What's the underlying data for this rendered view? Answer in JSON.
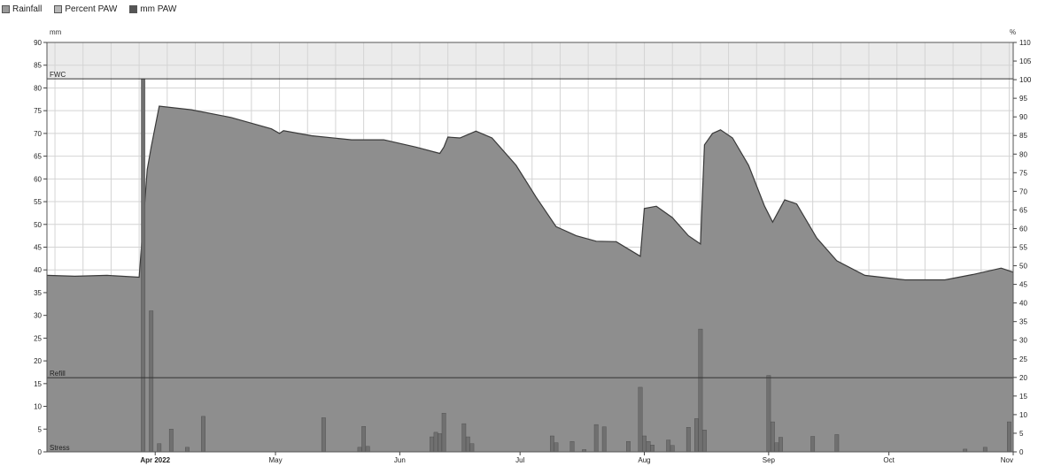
{
  "legend": [
    {
      "label": "Rainfall",
      "color": "#9a9a9a"
    },
    {
      "label": "Percent PAW",
      "color": "#b8b8b8"
    },
    {
      "label": "mm PAW",
      "color": "#555555"
    }
  ],
  "colors": {
    "plot_bg": "#ffffff",
    "band_bg": "#ebebeb",
    "area_fill": "#8e8e8e",
    "area_line": "#3a3a3a",
    "rain_fill": "#707070",
    "grid": "#d4d4d4",
    "line": "#333333"
  },
  "chart_data": {
    "type": "area",
    "left_axis_unit": "mm",
    "right_axis_unit": "%",
    "ylim_left": [
      0,
      90
    ],
    "ylim_right": [
      0,
      110
    ],
    "yticks_left": [
      0,
      5,
      10,
      15,
      20,
      25,
      30,
      35,
      40,
      45,
      50,
      55,
      60,
      65,
      70,
      75,
      80,
      85,
      90
    ],
    "yticks_right": [
      0,
      5,
      10,
      15,
      20,
      25,
      30,
      35,
      40,
      45,
      50,
      55,
      60,
      65,
      70,
      75,
      80,
      85,
      90,
      95,
      100,
      105,
      110
    ],
    "xlim": [
      "2022-03-05",
      "2022-11-01"
    ],
    "x_ticks": [
      {
        "date": "2022-04-01",
        "label": "Apr 2022"
      },
      {
        "date": "2022-05-01",
        "label": "May"
      },
      {
        "date": "2022-06-01",
        "label": "Jun"
      },
      {
        "date": "2022-07-01",
        "label": "Jul"
      },
      {
        "date": "2022-08-01",
        "label": "Aug"
      },
      {
        "date": "2022-09-01",
        "label": "Sep"
      },
      {
        "date": "2022-10-01",
        "label": "Oct"
      },
      {
        "date": "2022-11-01",
        "label": "Nov"
      }
    ],
    "grid": true,
    "reference_lines": [
      {
        "label": "FWC",
        "value": 82
      },
      {
        "label": "Refill",
        "value": 16.3
      },
      {
        "label": "Stress",
        "value": 0
      }
    ],
    "series": [
      {
        "name": "mm PAW",
        "points": [
          [
            "2022-03-05",
            38.8
          ],
          [
            "2022-03-12",
            38.6
          ],
          [
            "2022-03-20",
            38.8
          ],
          [
            "2022-03-28",
            38.4
          ],
          [
            "2022-03-29",
            50.0
          ],
          [
            "2022-03-30",
            62.0
          ],
          [
            "2022-03-31",
            67.0
          ],
          [
            "2022-04-02",
            76.0
          ],
          [
            "2022-04-10",
            75.2
          ],
          [
            "2022-04-20",
            73.5
          ],
          [
            "2022-04-30",
            71.0
          ],
          [
            "2022-05-02",
            70.0
          ],
          [
            "2022-05-03",
            70.6
          ],
          [
            "2022-05-10",
            69.5
          ],
          [
            "2022-05-20",
            68.6
          ],
          [
            "2022-05-28",
            68.6
          ],
          [
            "2022-06-05",
            67.0
          ],
          [
            "2022-06-11",
            65.6
          ],
          [
            "2022-06-12",
            67.0
          ],
          [
            "2022-06-13",
            69.2
          ],
          [
            "2022-06-16",
            69.0
          ],
          [
            "2022-06-20",
            70.5
          ],
          [
            "2022-06-24",
            69.0
          ],
          [
            "2022-06-30",
            63.0
          ],
          [
            "2022-07-05",
            56.0
          ],
          [
            "2022-07-10",
            49.5
          ],
          [
            "2022-07-15",
            47.5
          ],
          [
            "2022-07-20",
            46.3
          ],
          [
            "2022-07-25",
            46.2
          ],
          [
            "2022-07-31",
            43.0
          ],
          [
            "2022-08-01",
            53.5
          ],
          [
            "2022-08-04",
            54.0
          ],
          [
            "2022-08-08",
            51.5
          ],
          [
            "2022-08-12",
            47.5
          ],
          [
            "2022-08-15",
            45.7
          ],
          [
            "2022-08-16",
            67.5
          ],
          [
            "2022-08-18",
            70.0
          ],
          [
            "2022-08-20",
            70.8
          ],
          [
            "2022-08-23",
            69.0
          ],
          [
            "2022-08-27",
            63.0
          ],
          [
            "2022-08-31",
            54.0
          ],
          [
            "2022-09-02",
            50.5
          ],
          [
            "2022-09-05",
            55.4
          ],
          [
            "2022-09-08",
            54.5
          ],
          [
            "2022-09-13",
            47.0
          ],
          [
            "2022-09-18",
            42.0
          ],
          [
            "2022-09-25",
            38.8
          ],
          [
            "2022-10-05",
            37.8
          ],
          [
            "2022-10-15",
            37.8
          ],
          [
            "2022-10-22",
            39.0
          ],
          [
            "2022-10-29",
            40.4
          ],
          [
            "2022-11-01",
            39.5
          ]
        ]
      },
      {
        "name": "Rainfall",
        "bars": [
          [
            "2022-03-29",
            82.0
          ],
          [
            "2022-03-31",
            31.0
          ],
          [
            "2022-04-02",
            1.8
          ],
          [
            "2022-04-05",
            5.0
          ],
          [
            "2022-04-09",
            1.0
          ],
          [
            "2022-04-13",
            7.8
          ],
          [
            "2022-05-13",
            7.5
          ],
          [
            "2022-05-22",
            1.0
          ],
          [
            "2022-05-23",
            5.6
          ],
          [
            "2022-05-24",
            1.2
          ],
          [
            "2022-06-09",
            3.3
          ],
          [
            "2022-06-10",
            4.3
          ],
          [
            "2022-06-11",
            4.0
          ],
          [
            "2022-06-12",
            8.5
          ],
          [
            "2022-06-17",
            6.2
          ],
          [
            "2022-06-18",
            3.3
          ],
          [
            "2022-06-19",
            1.8
          ],
          [
            "2022-07-09",
            3.5
          ],
          [
            "2022-07-10",
            2.0
          ],
          [
            "2022-07-14",
            2.3
          ],
          [
            "2022-07-17",
            0.5
          ],
          [
            "2022-07-20",
            6.0
          ],
          [
            "2022-07-22",
            5.5
          ],
          [
            "2022-07-28",
            2.3
          ],
          [
            "2022-07-31",
            14.2
          ],
          [
            "2022-08-01",
            3.5
          ],
          [
            "2022-08-02",
            2.3
          ],
          [
            "2022-08-03",
            1.5
          ],
          [
            "2022-08-07",
            2.6
          ],
          [
            "2022-08-08",
            1.4
          ],
          [
            "2022-08-12",
            5.4
          ],
          [
            "2022-08-14",
            7.3
          ],
          [
            "2022-08-15",
            27.0
          ],
          [
            "2022-08-16",
            4.8
          ],
          [
            "2022-09-01",
            16.8
          ],
          [
            "2022-09-02",
            6.6
          ],
          [
            "2022-09-03",
            2.0
          ],
          [
            "2022-09-04",
            3.2
          ],
          [
            "2022-09-12",
            3.4
          ],
          [
            "2022-09-18",
            3.8
          ],
          [
            "2022-10-20",
            0.6
          ],
          [
            "2022-10-25",
            1.0
          ],
          [
            "2022-10-31",
            6.6
          ]
        ]
      }
    ]
  }
}
